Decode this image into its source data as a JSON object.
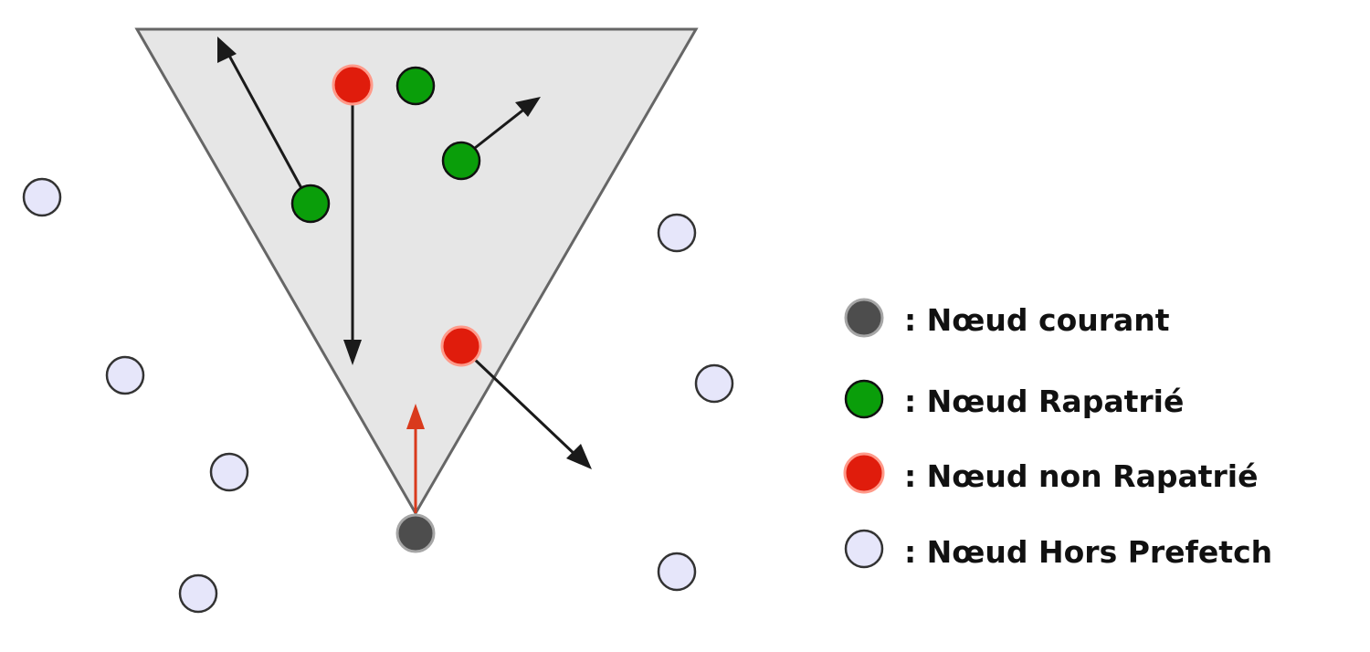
{
  "legend": {
    "current": {
      "label": ": Nœud courant",
      "color": "#4d4d4d"
    },
    "fetched": {
      "label": ": Nœud Rapatrié",
      "color": "#0a9e0a"
    },
    "not_fetched": {
      "label": ": Nœud non Rapatrié",
      "color": "#e01c0c"
    },
    "outside": {
      "label": ": Nœud Hors Prefetch",
      "color": "#e6e6fa"
    }
  },
  "colors": {
    "region_fill": "#e6e6e6",
    "region_stroke": "#666666",
    "arrow": "#1a1a1a",
    "current_arrow": "#d93a1c"
  }
}
